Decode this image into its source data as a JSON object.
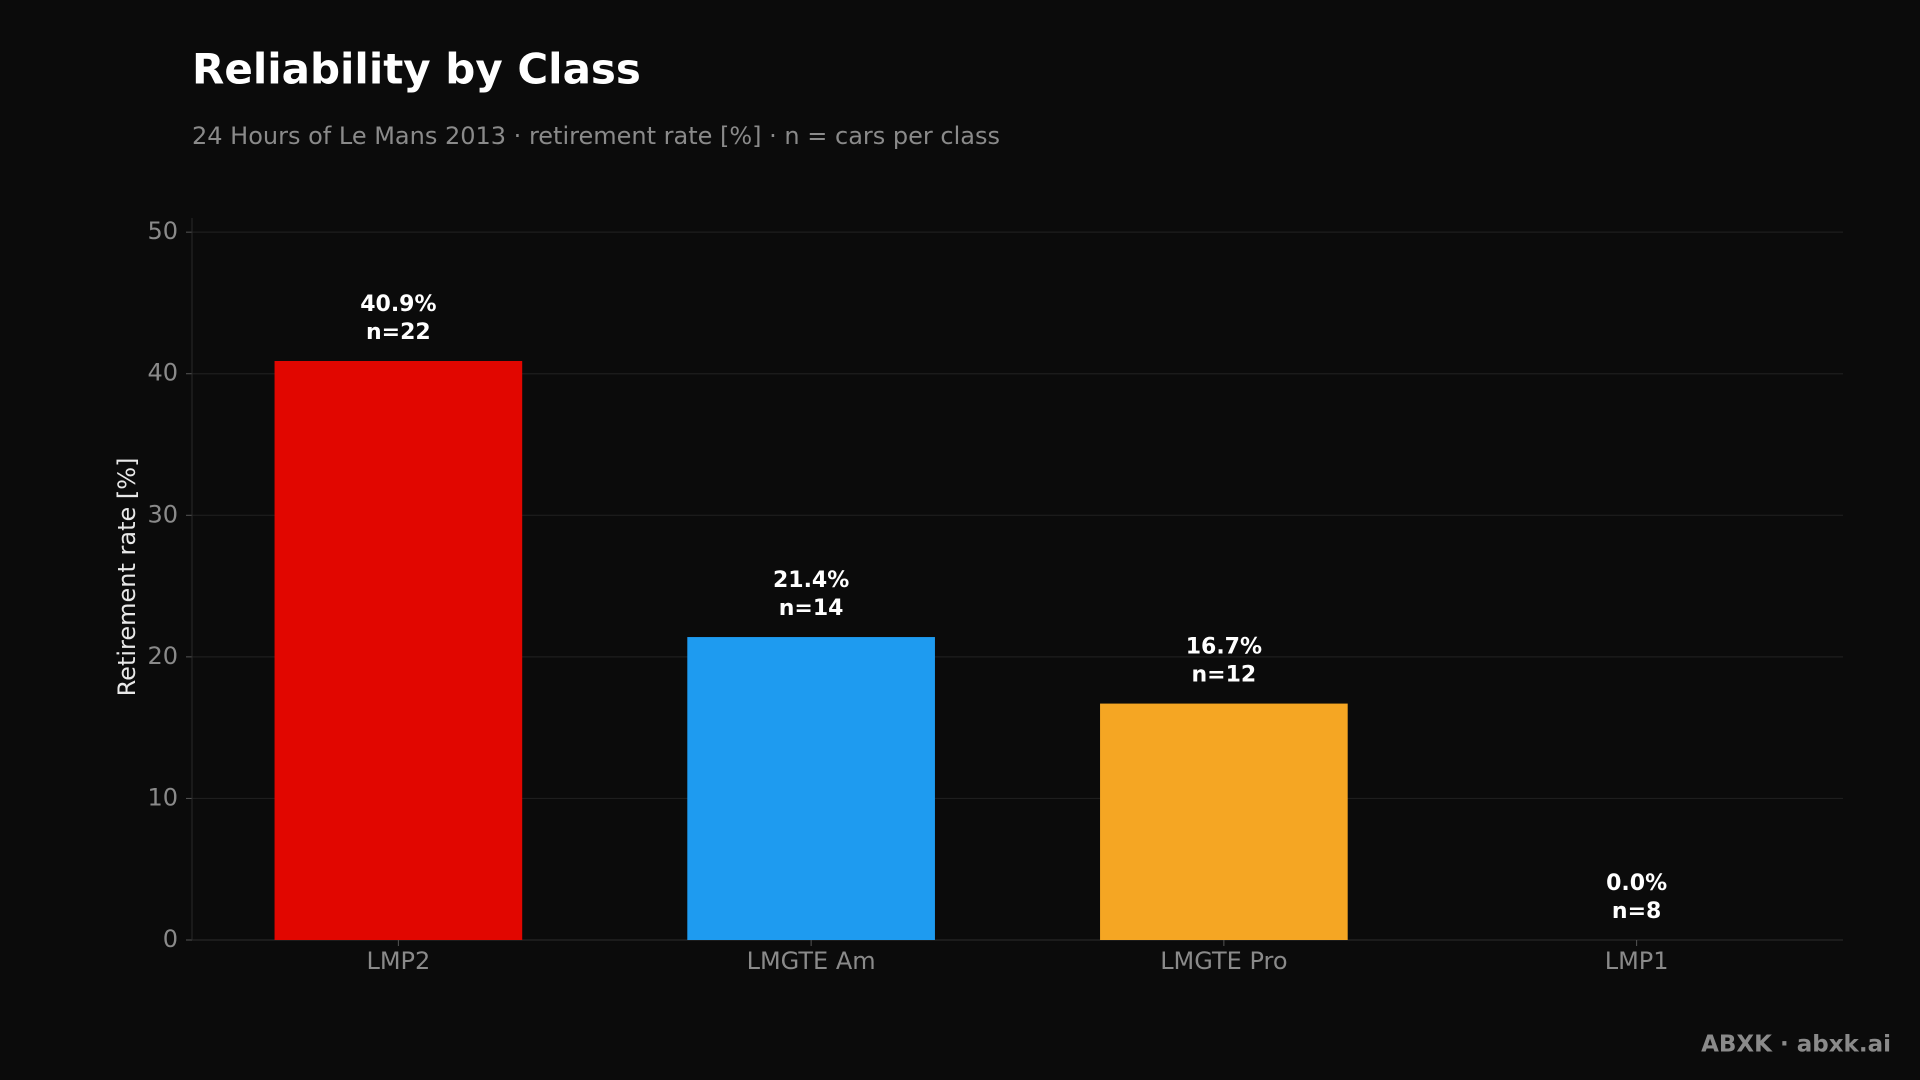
{
  "chart_data": {
    "type": "bar",
    "title": "Reliability by Class",
    "subtitle": "24 Hours of Le Mans 2013 · retirement rate [%] · n = cars per class",
    "y_label": "Retirement rate [%]",
    "categories": [
      "LMP2",
      "LMGTE Am",
      "LMGTE Pro",
      "LMP1"
    ],
    "values": [
      40.9,
      21.4,
      16.7,
      0.0
    ],
    "value_labels": [
      "40.9%",
      "21.4%",
      "16.7%",
      "0.0%"
    ],
    "n_labels": [
      "n=22",
      "n=14",
      "n=12",
      "n=8"
    ],
    "colors": [
      "#e10600",
      "#1e9bf0",
      "#f5a623",
      "#9b59b6"
    ],
    "ylim": [
      0,
      51
    ],
    "yticks": [
      0,
      10,
      20,
      30,
      40,
      50
    ],
    "grid": true,
    "footer": "ABXK · abxk.ai"
  }
}
